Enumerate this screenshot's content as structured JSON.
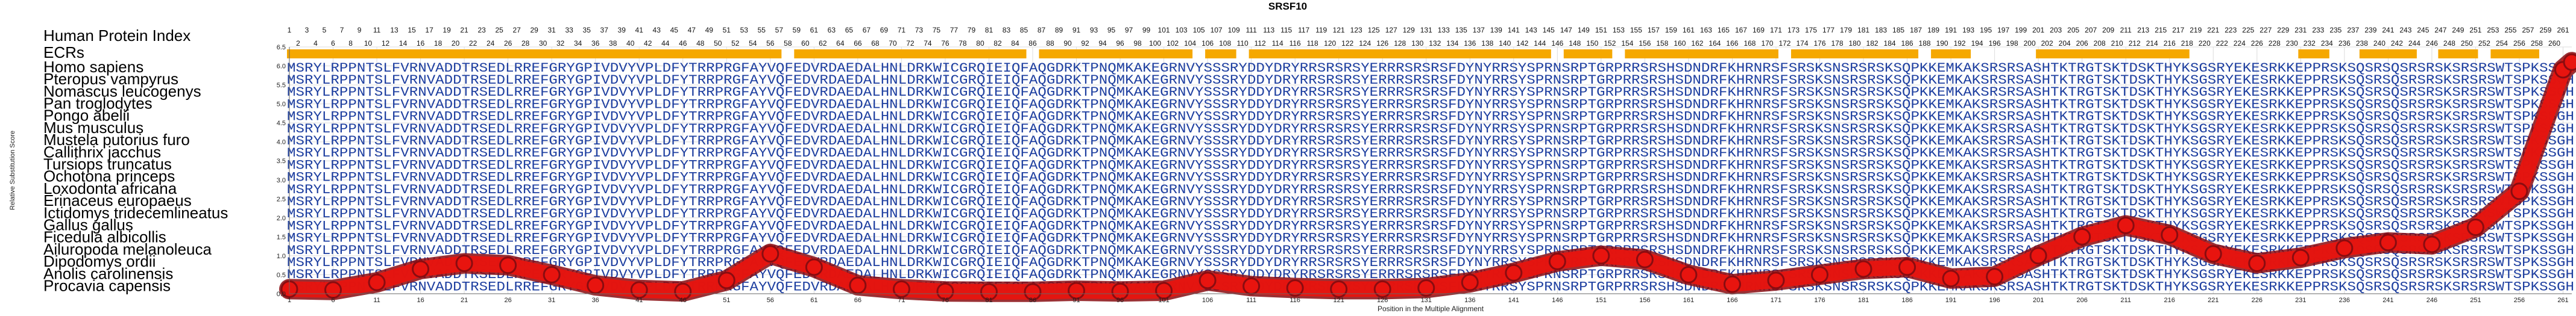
{
  "chart_data": {
    "type": "line",
    "title": "SRSF10",
    "xlabel": "Position in the Multiple Alignment",
    "ylabel": "Relative Substitution Score",
    "xlim": [
      1,
      262
    ],
    "ylim": [
      0,
      6.5
    ],
    "yticks": [
      0.0,
      0.5,
      1.0,
      1.5,
      2.0,
      2.5,
      3.0,
      3.5,
      4.0,
      4.5,
      5.0,
      5.5,
      6.0,
      6.5
    ],
    "xticks": [
      1,
      6,
      11,
      16,
      21,
      26,
      31,
      36,
      41,
      46,
      51,
      56,
      61,
      66,
      71,
      76,
      81,
      86,
      91,
      96,
      101,
      106,
      111,
      116,
      121,
      126,
      131,
      136,
      141,
      146,
      151,
      156,
      161,
      166,
      171,
      176,
      181,
      186,
      191,
      196,
      201,
      206,
      211,
      216,
      221,
      226,
      231,
      236,
      241,
      246,
      251,
      256,
      261
    ],
    "grid": true,
    "panel_title": "Human Protein Index",
    "ecr_label": "ECRs",
    "ecr_segments": [
      [
        1,
        57
      ],
      [
        59,
        85
      ],
      [
        87,
        104
      ],
      [
        106,
        109
      ],
      [
        111,
        145
      ],
      [
        147,
        152
      ],
      [
        154,
        171
      ],
      [
        173,
        187
      ],
      [
        189,
        193
      ],
      [
        201,
        218
      ],
      [
        231,
        234
      ],
      [
        238,
        244
      ],
      [
        247,
        251
      ],
      [
        253,
        258
      ]
    ],
    "series": [
      {
        "x": [
          1,
          6,
          11,
          16,
          21,
          26,
          31,
          36,
          41,
          46,
          51,
          56,
          61,
          66,
          71,
          76,
          81,
          86,
          91,
          96,
          101,
          106,
          111,
          116,
          121,
          126,
          131,
          136,
          141,
          146,
          151,
          156,
          161,
          166,
          171,
          176,
          181,
          186,
          191,
          196,
          201,
          206,
          211,
          216,
          221,
          226,
          231,
          236,
          241,
          246,
          251,
          256,
          261,
          262
        ],
        "values": [
          0.12,
          0.1,
          0.3,
          0.65,
          0.8,
          0.75,
          0.5,
          0.22,
          0.1,
          0.06,
          0.35,
          1.05,
          0.7,
          0.22,
          0.12,
          0.06,
          0.05,
          0.05,
          0.08,
          0.06,
          0.08,
          0.35,
          0.2,
          0.15,
          0.12,
          0.12,
          0.15,
          0.3,
          0.55,
          0.85,
          1.0,
          0.9,
          0.5,
          0.25,
          0.35,
          0.5,
          0.65,
          0.7,
          0.4,
          0.45,
          1.0,
          1.5,
          1.8,
          1.55,
          1.05,
          0.8,
          0.95,
          1.2,
          1.35,
          1.3,
          1.75,
          2.7,
          5.9,
          6.1
        ]
      }
    ],
    "line_color": "#e8140f",
    "marker_outline": "#8a0c10",
    "ecr_color": "#f5a800",
    "position_numbers": "1 2 3 4 5 6 7 8 9 10 11 12 13 14 15 16 17 18 19 20 21 22 23 24 25 26 27 28 29 30 31 32 33 34 35 36 37 38 39 40 41 42 43 44 45 46 47 48 49 50 51 52 53 54 55 56 57 58 59 60 61 62 63 64 65 66 67 68 69 70 71 72 73 74 75 76 77 78 79 80 81 82 83 84 85 86 87 88 89 90 91 92 93 94 95 96 97 98 99 100 101 102 103 104 105 106 107 108 109 110 111 112 113 114 115 116 117 118 119 120 121 122 123 124 125 126 127 128 129 130 131 132 133 134 135 136 137 138 139 140 141 142 143 144 145 146 147 148 149 150 151 152 153 154 155 156 157 158 159 160 161 162 163 164 165 166 167 168 169 170 171 172 173 174 175 176 177 178 179 180 181 182 183 184 185 186 187 188 189 190 191 192 193 194 195 196 197 198 199 200 201 202 203 204 205 206 207 208 209 210 211 212 213 214 215 216 217 218 219 220 221 222 223 224 225 226 227 228 229 230 231 232 233 234 235 236 237 238 239 240 241 242 243 244 245 246 247 248 249 250 251 252 253 254 255 256 257 258 259 260 261",
    "species": [
      "Homo sapiens",
      "Pteropus vampyrus",
      "Nomascus leucogenys",
      "Pan troglodytes",
      "Pongo abelii",
      "Mus musculus",
      "Mustela putorius furo",
      "Callithrix jacchus",
      "Tursiops truncatus",
      "Ochotona princeps",
      "Loxodonta africana",
      "Erinaceus europaeus",
      "Ictidomys tridecemlineatus",
      "Gallus gallus",
      "Ficedula albicollis",
      "Ailuropoda melanoleuca",
      "Dipodomys ordii",
      "Anolis carolinensis",
      "Procavia capensis"
    ],
    "sequences": [
      "MSRYLRPPNTSLFVRNVADDTRSEDLRREFGRYGPIVDVYVPLDFYTRRPRGFAYVQFEDVRDAEDALHNLDRKWICGRQIEIQFAQGDRKTPNQMKAKEGRNVYSSSRYDDYDRYRRSRSRSYERRRSRSRSFDYNYRRSYSPRNSRPTGRPRRSRSHSDNDRFKHRNRSFSRSKSNSRSRSKSQPKKEMKAKSRSRSASHTKTRGTSKTDSKTHYKSGSRYEKESRKKEPPRSKSQSRSQSRSRSKSRSRSWTSPKSSGH",
      "MSRYLRPPNTSLFVRNVADDTRSEDLRREFGRYGPIVDVYVPLDFYTRRPRGFAYVQFEDVRDAEDALHNLDRKWICGRQIEIQFAQGDRKTPNQMKAKEGRNVYSSSRYDDYDRYRRSRSRSYERRRSRSRSFDYNYRRSYSPRNSRPTGRPRRSRSHSDNDRFKHRNRSFSRSKSNSRSRSKSQPKKEMKAKSRSRSASHTKTRGTSKTDSKTHYKSGSRYEKESRKKEPPRSKSQSRSQSRSRSKSRSRSWTSPKSSGH",
      "MSRYLRPPNTSLFVRNVADDTRSEDLRREFGRYGPIVDVYVPLDFYTRRPRGFAYVQFEDVRDAEDALHNLDRKWICGRQIEIQFAQGDRKTPNQMKAKEGRNVYSSSRYDDYDRYRRSRSRSYERRRSRSRSFDYNYRRSYSPRNSRPTGRPRRSRSHSDNDRFKHRNRSFSRSKSNSRSRSKSQPKKEMKAKSRSRSASHTKTRGTSKTDSKTHYKSGSRYEKESRKKEPPRSKSQSRSQSRSRSKSRSRSWTSPKSSGH",
      "MSRYLRPPNTSLFVRNVADDTRSEDLRREFGRYGPIVDVYVPLDFYTRRPRGFAYVQFEDVRDAEDALHNLDRKWICGRQIEIQFAQGDRKTPNQMKAKEGRNVYSSSRYDDYDRYRRSRSRSYERRRSRSRSFDYNYRRSYSPRNSRPTGRPRRSRSHSDNDRFKHRNRSFSRSKSNSRSRSKSQPKKEMKAKSRSRSASHTKTRGTSKTDSKTHYKSGSRYEKESRKKEPPRSKSQSRSQSRSRSKSRSRSWTSPKSSGH",
      "MSRYLRPPNTSLFVRNVADDTRSEDLRREFGRYGPIVDVYVPLDFYTRRPRGFAYVQFEDVRDAEDALHNLDRKWICGRQIEIQFAQGDRKTPNQMKAKEGRNVYSSSRYDDYDRYRRSRSRSYERRRSRSRSFDYNYRRSYSPRNSRPTGRPRRSRSHSDNDRFKHRNRSFSRSKSNSRSRSKSQPKKEMKAKSRSRSASHTKTRGTSKTDSKTHYKSGSRYEKESRKKEPPRSKSQSRSQSRSRSKSRSRSWTSPKSSGH",
      "MSRYLRPPNTSLFVRNVADDTRSEDLRREFGRYGPIVDVYVPLDFYTRRPRGFAYVQFEDVRDAEDALHNLDRKWICGRQIEIQFAQGDRKTPNQMKAKEGRNVYSSSRYDDYDRYRRSRSRSYERRRSRSRSFDYNYRRSYSPRNSRPTGRPRRSRSHSDNDRFKHRNRSFSRSKSNSRSRSKSQPKKEMKAKSRSRSASHTKTRGTSKTDSKTHYKSGSRYEKESRKKEPPRSKSQSRSQSRSRSKSRSRSWTSPKSSGH",
      "MSRYLRPPNTSLFVRNVADDTRSEDLRREFGRYGPIVDVYVPLDFYTRRPRGFAYVQFEDVRDAEDALHNLDRKWICGRQIEIQFAQGDRKTPNQMKAKEGRNVYSSSRYDDYDRYRRSRSRSYERRRSRSRSFDYNYRRSYSPRNSRPTGRPRRSRSHSDNDRFKHRNRSFSRSKSNSRSRSKSQPKKEMKAKSRSRSASHTKTRGTSKTDSKTHYKSGSRYEKESRKKEPPRSKSQSRSQSRSRSKSRSRSWTSPKSSGH",
      "MSRYLRPPNTSLFVRNVADDTRSEDLRREFGRYGPIVDVYVPLDFYTRRPRGFAYVQFEDVRDAEDALHNLDRKWICGRQIEIQFAQGDRKTPNQMKAKEGRNVYSSSRYDDYDRYRRSRSRSYERRRSRSRSFDYNYRRSYSPRNSRPTGRPRRSRSHSDNDRFKHRNRSFSRSKSNSRSRSKSQPKKEMKAKSRSRSASHTKTRGTSKTDSKTHYKSGSRYEKESRKKEPPRSKSQSRSQSRSRSKSRSRSWTSPKSSGH",
      "MSRYLRPPNTSLFVRNVADDTRSEDLRREFGRYGPIVDVYVPLDFYTRRPRGFAYVQFEDVRDAEDALHNLDRKWICGRQIEIQFAQGDRKTPNQMKAKEGRNVYSSSRYDDYDRYRRSRSRSYERRRSRSRSFDYNYRRSYSPRNSRPTGRPRRSRSHSDNDRFKHRNRSFSRSKSNSRSRSKSQPKKEMKAKSRSRSASHTKTRGTSKTDSKTHYKSGSRYEKESRKKEPPRSKSQSRSQSRSRSKSRSRSWTSPKSSGH",
      "MSRYLRPPNTSLFVRNVADDTRSEDLRREFGRYGPIVDVYVPLDFYTRRPRGFAYVQFEDVRDAEDALHNLDRKWICGRQIEIQFAQGDRKTPNQMKAKEGRNVYSSSRYDDYDRYRRSRSRSYERRRSRSRSFDYNYRRSYSPRNSRPTGRPRRSRSHSDNDRFKHRNRSFSRSKSNSRSRSKSQPKKEMKAKSRSRSASHTKTRGTSKTDSKTHYKSGSRYEKESRKKEPPRSKSQSRSQSRSRSKSRSRSWTSPKSSGH",
      "MSRYLRPPNTSLFVRNVADDTRSEDLRREFGRYGPIVDVYVPLDFYTRRPRGFAYVQFEDVRDAEDALHNLDRKWICGRQIEIQFAQGDRKTPNQMKAKEGRNVYSSSRYDDYDRYRRSRSRSYERRRSRSRSFDYNYRRSYSPRNSRPTGRPRRSRSHSDNDRFKHRNRSFSRSKSNSRSRSKSQPKKEMKAKSRSRSASHTKTRGTSKTDSKTHYKSGSRYEKESRKKEPPRSKSQSRSQSRSRSKSRSRSWTSPKSSGH",
      "MSRYLRPPNTSLFVRNVADDTRSEDLRREFGRYGPIVDVYVPLDFYTRRPRGFAYVQFEDVRDAEDALHNLDRKWICGRQIEIQFAQGDRKTPNQMKAKEGRNVYSSSRYDDYDRYRRSRSRSYERRRSRSRSFDYNYRRSYSPRNSRPTGRPRRSRSHSDNDRFKHRNRSFSRSKSNSRSRSKSQPKKEMKAKSRSRSASHTKTRGTSKTDSKTHYKSGSRYEKESRKKEPPRSKSQSRSQSRSRSKSRSRSWTSPKSSGH",
      "MSRYLRPPNTSLFVRNVADDTRSEDLRREFGRYGPIVDVYVPLDFYTRRPRGFAYVQFEDVRDAEDALHNLDRKWICGRQIEIQFAQGDRKTPNQMKAKEGRNVYSSSRYDDYDRYRRSRSRSYERRRSRSRSFDYNYRRSYSPRNSRPTGRPRRSRSHSDNDRFKHRNRSFSRSKSNSRSRSKSQPKKEMKAKSRSRSASHTKTRGTSKTDSKTHYKSGSRYEKESRKKEPPRSKSQSRSQSRSRSKSRSRSWTSPKSSGH",
      "MSRYLRPPNTSLFVRNVADDTRSEDLRREFGRYGPIVDVYVPLDFYTRRPRGFAYVQFEDVRDAEDALHNLDRKWICGRQIEIQFAQGDRKTPNQMKAKEGRNVYSSSRYDDYDRYRRSRSRSYERRRSRSRSFDYNYRRSYSPRNSRPTGRPRRSRSHSDNDRFKHRNRSFSRSKSNSRSRSKSQPKKEMKAKSRSRSASHTKTRGTSKTDSKTHYKSGSRYEKESRKKEPPRSKSQSRSQSRSRSKSRSRSWTSPKSSGH",
      "MSRYLRPPNTSLFVRNVADDTRSEDLRREFGRYGPIVDVYVPLDFYTRRPRGFAYVQFEDVRDAEDALHNLDRKWICGRQIEIQFAQGDRKTPNQMKAKEGRNVYSSSRYDDYDRYRRSRSRSYERRRSRSRSFDYNYRRSYSPRNSRPTGRPRRSRSHSDNDRFKHRNRSFSRSKSNSRSRSKSQPKKEMKAKSRSRSASHTKTRGTSKTDSKTHYKSGSRYEKESRKKEPPRSKSQSRSQSRSRSKSRSRSWTSPKSSGH",
      "MSRYLRPPNTSLFVRNVADDTRSEDLRREFGRYGPIVDVYVPLDFYTRRPRGFAYVQFEDVRDAEDALHNLDRKWICGRQIEIQFAQGDRKTPNQMKAKEGRNVYSSSRYDDYDRYRRSRSRSYERRRSRSRSFDYNYRRSYSPRNSRPTGRPRRSRSHSDNDRFKHRNRSFSRSKSNSRSRSKSQPKKEMKAKSRSRSASHTKTRGTSKTDSKTHYKSGSRYEKESRKKEPPRSKSQSRSQSRSRSKSRSRSWTSPKSSGH",
      "MSRYLRPPNTSLFVRNVADDTRSEDLRREFGRYGPIVDVYVPLDFYTRRPRGFAYVQFEDVRDAEDALHNLDRKWICGRQIEIQFAQGDRKTPNQMKAKEGRNVYSSSRYDDYDRYRRSRSRSYERRRSRSRSFDYNYRRSYSPRNSRPTGRPRRSRSHSDNDRFKHRNRSFSRSKSNSRSRSKSQPKKEMKAKSRSRSASHTKTRGTSKTDSKTHYKSGSRYEKESRKKEPPRSKSQSRSQSRSRSKSRSRSWTSPKSSGH",
      "MSRYLRPPNTSLFVRNVADDTRSEDLRREFGRYGPIVDVYVPLDFYTRRPRGFAYVQFEDVRDAEDALHNLDRKWICGRQIEIQFAQGDRKTPNQMKAKEGRNVYSSSRYDDYDRYRRSRSRSYERRRSRSRSFDYNYRRSYSPRNSRPTGRPRRSRSHSDNDRFKHRNRSFSRSKSNSRSRSKSQPKKEMKAKSRSRSASHTKTRGTSKTDSKTHYKSGSRYEKESRKKEPPRSKSQSRSQSRSRSKSRSRSWTSPKSSGH",
      "MSRYLRPPNTSLFVRNVADDTRSEDLRREFGRYGPIVDVYVPLDFYTRRPRGFAYVQFEDVRDAEDALHNLDRKWICGRQIEIQFAQGDRKTPNQMKAKEGRNVYSSSRYDDYDRYRRSRSRSYERRRSRSRSFDYNYRRSYSPRNSRPTGRPRRSRSHSDNDRFKHRNRSFSRSKSNSRSRSKSQPKKEMKAKSRSRSASHTKTRGTSKTDSKTHYKSGSRYEKESRKKEPPRSKSQSRSQSRSRSKSRSRSWTSPKSSGH"
    ]
  }
}
